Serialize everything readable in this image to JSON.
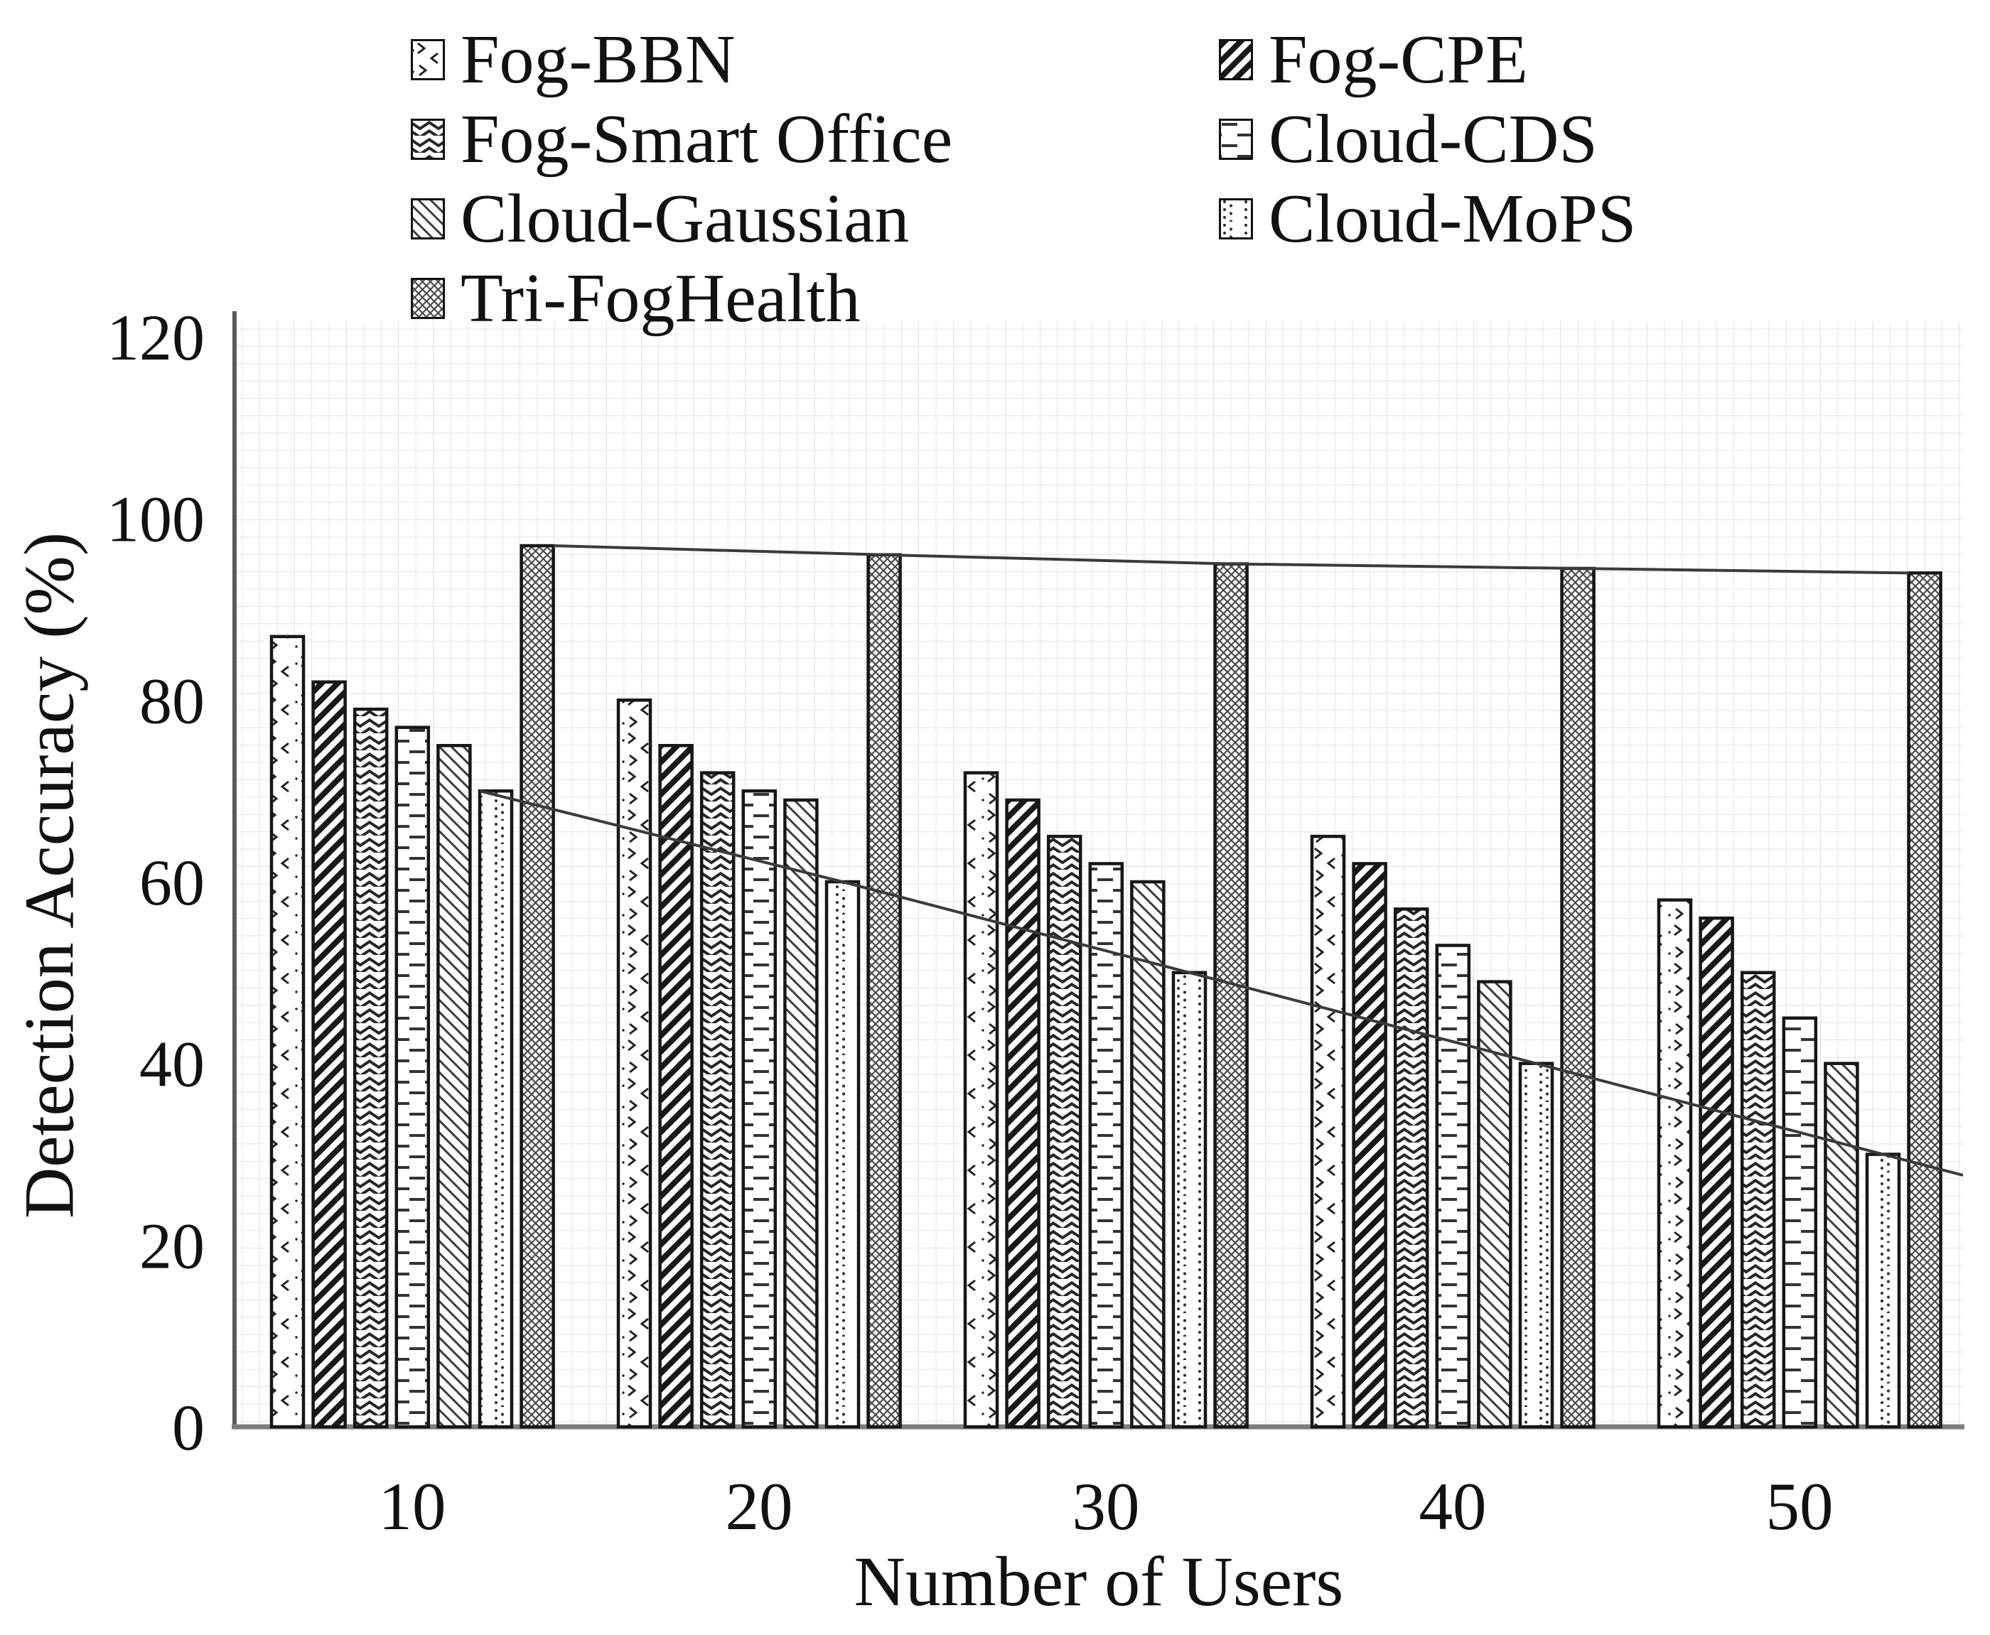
{
  "chart_data": {
    "type": "bar",
    "title": "",
    "xlabel": "Number of Users",
    "ylabel": "Detection Accuracy (%)",
    "categories": [
      "10",
      "20",
      "30",
      "40",
      "50"
    ],
    "yticks": [
      0,
      20,
      40,
      60,
      80,
      100,
      120
    ],
    "ylim": [
      0,
      120
    ],
    "grid": true,
    "legend_position": "top",
    "series": [
      {
        "name": "Fog-BBN",
        "pattern": "bbn",
        "values": [
          87,
          80,
          72,
          65,
          58
        ]
      },
      {
        "name": "Fog-CPE",
        "pattern": "cpe",
        "values": [
          82,
          75,
          69,
          62,
          56
        ]
      },
      {
        "name": "Fog-Smart Office",
        "pattern": "smart",
        "values": [
          79,
          72,
          65,
          57,
          50
        ]
      },
      {
        "name": "Cloud-CDS",
        "pattern": "cds",
        "values": [
          77,
          70,
          62,
          53,
          45
        ]
      },
      {
        "name": "Cloud-Gaussian",
        "pattern": "gauss",
        "values": [
          75,
          69,
          60,
          49,
          40
        ]
      },
      {
        "name": "Cloud-MoPS",
        "pattern": "mops",
        "values": [
          70,
          60,
          50,
          40,
          30
        ]
      },
      {
        "name": "Tri-FogHealth",
        "pattern": "tri",
        "values": [
          97,
          96,
          95,
          94.5,
          94
        ]
      }
    ],
    "trend_lines": [
      "Tri-FogHealth",
      "Cloud-MoPS"
    ]
  },
  "colors": {
    "background": "#ffffff",
    "bar_outline": "#161616",
    "pattern_ink": "#222222",
    "grid": "#e2e2e2",
    "axis_y": "#5a5a5a",
    "axis_x": "#7d7d7d",
    "trend": "#3a3a3a",
    "text": "#111111"
  }
}
